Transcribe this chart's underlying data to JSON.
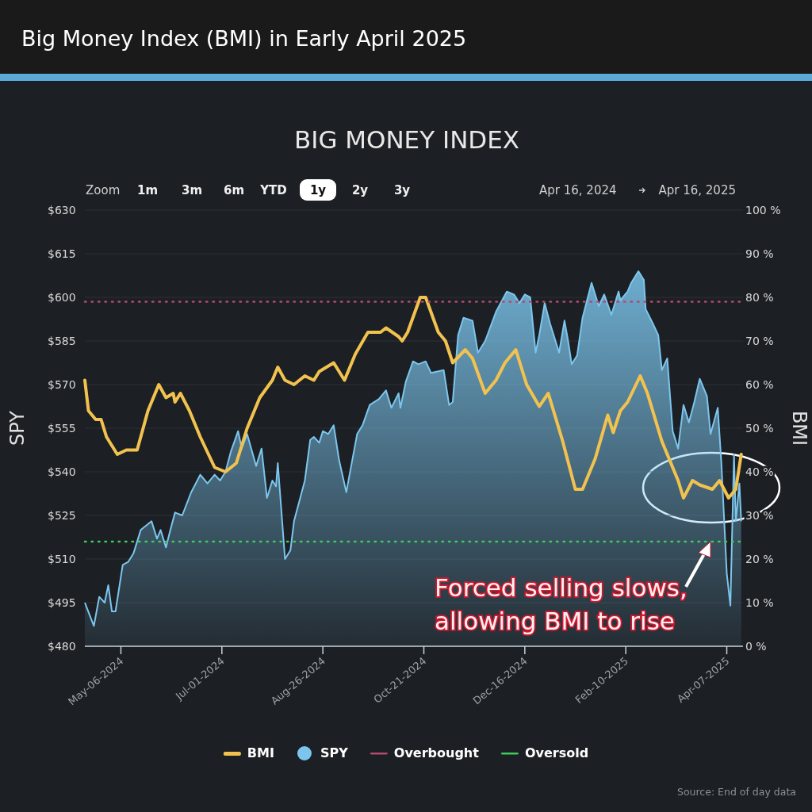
{
  "chart_data": {
    "type": "line",
    "title": "Big Money Index (BMI) in Early April 2025",
    "subtitle": "BIG MONEY INDEX",
    "ylabel": "SPY",
    "y2label": "BMI",
    "xlim": [
      "2024-04-16",
      "2025-04-16"
    ],
    "xticks": [
      {
        "value": "2024-05-06",
        "label": "May-06-2024"
      },
      {
        "value": "2024-07-01",
        "label": "Jul-01-2024"
      },
      {
        "value": "2024-08-26",
        "label": "Aug-26-2024"
      },
      {
        "value": "2024-10-21",
        "label": "Oct-21-2024"
      },
      {
        "value": "2024-12-16",
        "label": "Dec-16-2024"
      },
      {
        "value": "2025-02-10",
        "label": "Feb-10-2025"
      },
      {
        "value": "2025-04-07",
        "label": "Apr-07-2025"
      }
    ],
    "ylim": [
      480,
      630
    ],
    "yticks": [
      {
        "value": 480,
        "label": "$480"
      },
      {
        "value": 495,
        "label": "$495"
      },
      {
        "value": 510,
        "label": "$510"
      },
      {
        "value": 525,
        "label": "$525"
      },
      {
        "value": 540,
        "label": "$540"
      },
      {
        "value": 555,
        "label": "$555"
      },
      {
        "value": 570,
        "label": "$570"
      },
      {
        "value": 585,
        "label": "$585"
      },
      {
        "value": 600,
        "label": "$600"
      },
      {
        "value": 615,
        "label": "$615"
      },
      {
        "value": 630,
        "label": "$630"
      }
    ],
    "y2lim": [
      0,
      100
    ],
    "y2ticks": [
      {
        "value": 0,
        "label": "0 %"
      },
      {
        "value": 10,
        "label": "10 %"
      },
      {
        "value": 20,
        "label": "20 %"
      },
      {
        "value": 30,
        "label": "30 %"
      },
      {
        "value": 40,
        "label": "40 %"
      },
      {
        "value": 50,
        "label": "50 %"
      },
      {
        "value": 60,
        "label": "60 %"
      },
      {
        "value": 70,
        "label": "70 %"
      },
      {
        "value": 80,
        "label": "80 %"
      },
      {
        "value": 90,
        "label": "90 %"
      },
      {
        "value": 100,
        "label": "100 %"
      }
    ],
    "grid": "y",
    "legend": "bottom",
    "series": [
      {
        "name": "BMI",
        "axis": "y2",
        "color": "#f2c24f",
        "x": [
          "2024-04-16",
          "2024-04-18",
          "2024-04-22",
          "2024-04-25",
          "2024-04-28",
          "2024-05-04",
          "2024-05-09",
          "2024-05-15",
          "2024-05-21",
          "2024-05-27",
          "2024-05-31",
          "2024-06-04",
          "2024-06-05",
          "2024-06-08",
          "2024-06-13",
          "2024-06-19",
          "2024-06-27",
          "2024-07-03",
          "2024-07-09",
          "2024-07-15",
          "2024-07-22",
          "2024-07-29",
          "2024-08-01",
          "2024-08-05",
          "2024-08-10",
          "2024-08-16",
          "2024-08-21",
          "2024-08-24",
          "2024-09-01",
          "2024-09-07",
          "2024-09-13",
          "2024-09-20",
          "2024-09-27",
          "2024-09-30",
          "2024-10-07",
          "2024-10-09",
          "2024-10-12",
          "2024-10-19",
          "2024-10-22",
          "2024-10-29",
          "2024-11-02",
          "2024-11-06",
          "2024-11-13",
          "2024-11-17",
          "2024-11-24",
          "2024-11-30",
          "2024-12-05",
          "2024-12-11",
          "2024-12-17",
          "2024-12-24",
          "2024-12-29",
          "2025-01-06",
          "2025-01-13",
          "2025-01-17",
          "2025-01-24",
          "2025-01-31",
          "2025-02-03",
          "2025-02-07",
          "2025-02-11",
          "2025-02-18",
          "2025-02-22",
          "2025-03-02",
          "2025-03-11",
          "2025-03-14",
          "2025-03-19",
          "2025-03-23",
          "2025-03-30",
          "2025-04-03",
          "2025-04-08",
          "2025-04-12",
          "2025-04-15"
        ],
        "values": [
          61,
          54,
          52,
          52,
          48,
          44,
          45,
          45,
          54,
          60,
          57,
          58,
          56,
          58,
          54,
          48,
          41,
          40,
          42,
          50,
          57,
          61,
          64,
          61,
          60,
          62,
          61,
          63,
          65,
          61,
          67,
          72,
          72,
          73,
          71,
          70,
          72,
          80,
          80,
          72,
          70,
          65,
          68,
          66,
          58,
          61,
          65,
          68,
          60,
          55,
          58,
          47,
          36,
          36,
          43,
          53,
          49,
          54,
          56,
          62,
          58,
          47,
          38,
          34,
          38,
          37,
          36,
          38,
          34,
          36,
          44
        ]
      },
      {
        "name": "SPY",
        "type": "area",
        "color": "#7cc6ee",
        "x": [
          "2024-04-16",
          "2024-04-21",
          "2024-04-24",
          "2024-04-27",
          "2024-04-29",
          "2024-05-01",
          "2024-05-03",
          "2024-05-07",
          "2024-05-10",
          "2024-05-13",
          "2024-05-17",
          "2024-05-23",
          "2024-05-26",
          "2024-05-28",
          "2024-05-31",
          "2024-06-02",
          "2024-06-05",
          "2024-06-09",
          "2024-06-14",
          "2024-06-19",
          "2024-06-23",
          "2024-06-27",
          "2024-06-30",
          "2024-07-03",
          "2024-07-06",
          "2024-07-10",
          "2024-07-12",
          "2024-07-15",
          "2024-07-20",
          "2024-07-23",
          "2024-07-26",
          "2024-07-29",
          "2024-07-31",
          "2024-08-01",
          "2024-08-05",
          "2024-08-08",
          "2024-08-10",
          "2024-08-16",
          "2024-08-19",
          "2024-08-21",
          "2024-08-24",
          "2024-08-26",
          "2024-08-29",
          "2024-09-01",
          "2024-09-04",
          "2024-09-08",
          "2024-09-14",
          "2024-09-17",
          "2024-09-21",
          "2024-09-26",
          "2024-09-30",
          "2024-10-03",
          "2024-10-07",
          "2024-10-08",
          "2024-10-11",
          "2024-10-15",
          "2024-10-18",
          "2024-10-22",
          "2024-10-25",
          "2024-11-01",
          "2024-11-04",
          "2024-11-06",
          "2024-11-09",
          "2024-11-12",
          "2024-11-17",
          "2024-11-20",
          "2024-11-24",
          "2024-11-30",
          "2024-12-06",
          "2024-12-10",
          "2024-12-13",
          "2024-12-16",
          "2024-12-19",
          "2024-12-22",
          "2024-12-24",
          "2024-12-27",
          "2024-12-30",
          "2025-01-04",
          "2025-01-07",
          "2025-01-09",
          "2025-01-11",
          "2025-01-14",
          "2025-01-17",
          "2025-01-22",
          "2025-01-26",
          "2025-01-29",
          "2025-02-02",
          "2025-02-06",
          "2025-02-07",
          "2025-02-11",
          "2025-02-13",
          "2025-02-17",
          "2025-02-20",
          "2025-02-21",
          "2025-02-25",
          "2025-02-28",
          "2025-03-02",
          "2025-03-05",
          "2025-03-08",
          "2025-03-11",
          "2025-03-14",
          "2025-03-17",
          "2025-03-20",
          "2025-03-23",
          "2025-03-27",
          "2025-03-29",
          "2025-04-02",
          "2025-04-04",
          "2025-04-07",
          "2025-04-09",
          "2025-04-11",
          "2025-04-12",
          "2025-04-14",
          "2025-04-15"
        ],
        "values": [
          495,
          487,
          497,
          495,
          501,
          492,
          492,
          508,
          509,
          512,
          520,
          523,
          517,
          520,
          514,
          519,
          526,
          525,
          533,
          539,
          536,
          539,
          537,
          540,
          547,
          554,
          548,
          553,
          542,
          548,
          531,
          537,
          535,
          543,
          510,
          513,
          523,
          537,
          551,
          552,
          550,
          554,
          553,
          556,
          544,
          533,
          553,
          556,
          563,
          565,
          568,
          562,
          567,
          562,
          571,
          578,
          577,
          578,
          574,
          575,
          563,
          564,
          587,
          593,
          592,
          581,
          585,
          595,
          602,
          601,
          598,
          601,
          600,
          581,
          587,
          598,
          591,
          581,
          592,
          585,
          577,
          580,
          593,
          605,
          597,
          601,
          594,
          602,
          599,
          602,
          605,
          609,
          606,
          596,
          591,
          587,
          575,
          579,
          554,
          548,
          563,
          557,
          564,
          572,
          566,
          553,
          562,
          543,
          505,
          494,
          546,
          523,
          536,
          523
        ]
      }
    ],
    "ref_lines": [
      {
        "axis": "y2",
        "value": 79,
        "label": "Overbought",
        "color": "#b24a6e",
        "line_style": "dotted"
      },
      {
        "axis": "y2",
        "value": 24,
        "label": "Oversold",
        "color": "#3ecb5c",
        "line_style": "dotted"
      }
    ],
    "annotations": [
      "Forced selling slows, allowing BMI to rise",
      "Zoom",
      "1m",
      "3m",
      "6m",
      "YTD",
      "1y",
      "2y",
      "3y",
      "Apr 16, 2024",
      "Apr 16, 2025",
      "Source: End of day data"
    ]
  }
}
